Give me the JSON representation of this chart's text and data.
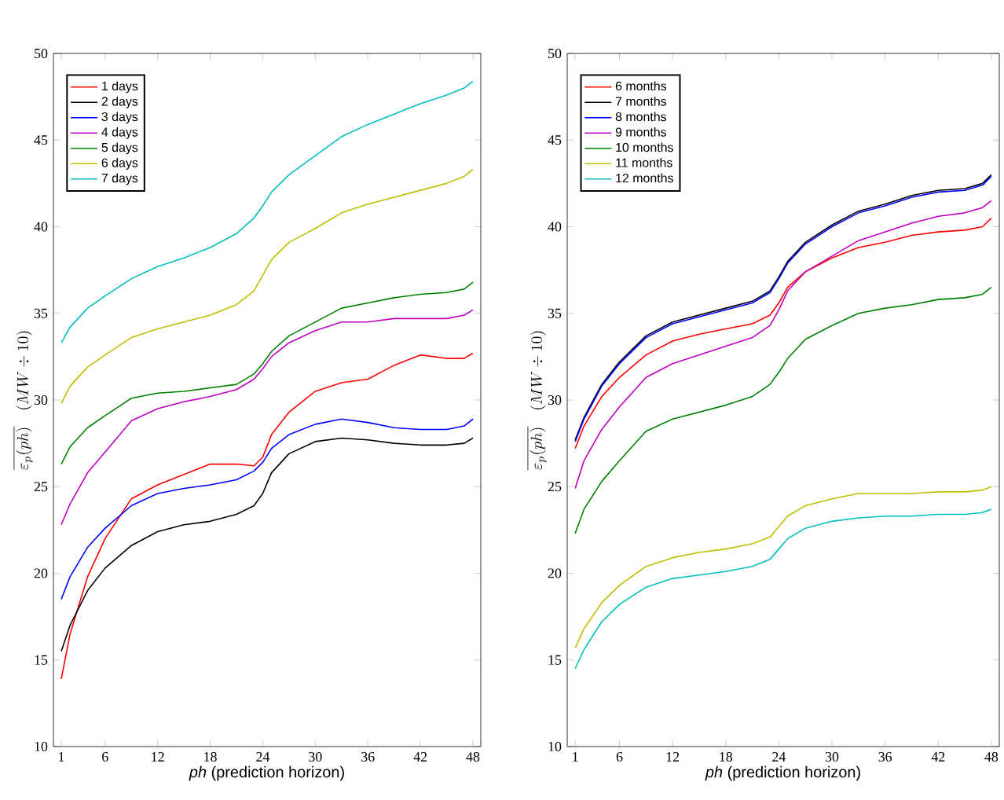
{
  "chart_data": [
    {
      "type": "line",
      "xlabel": "*ph* (prediction horizon)",
      "ylabel": "\\overline{\\varepsilon_p(ph)}\\quad (MW \\div 10)",
      "x": [
        1,
        2,
        4,
        6,
        9,
        12,
        15,
        18,
        21,
        23,
        24,
        25,
        27,
        30,
        33,
        36,
        39,
        42,
        45,
        47,
        48
      ],
      "xlim": [
        0.1,
        48.9
      ],
      "xticks": [
        1,
        6,
        12,
        18,
        24,
        30,
        36,
        42,
        48
      ],
      "ylim": [
        10,
        50
      ],
      "yticks": [
        10,
        15,
        20,
        25,
        30,
        35,
        40,
        45,
        50
      ],
      "legend": "top left",
      "grid": false,
      "marker": "none",
      "line_style": "solid",
      "series": [
        {
          "name": "1 days",
          "color": "#ff0000",
          "values": [
            13.9,
            16.5,
            19.8,
            22.0,
            24.3,
            25.1,
            25.7,
            26.3,
            26.3,
            26.2,
            26.7,
            28.0,
            29.3,
            30.5,
            31.0,
            31.2,
            32.0,
            32.6,
            32.4,
            32.4,
            32.7
          ]
        },
        {
          "name": "2 days",
          "color": "#000000",
          "values": [
            15.5,
            17.0,
            19.0,
            20.3,
            21.6,
            22.4,
            22.8,
            23.0,
            23.4,
            23.9,
            24.6,
            25.8,
            26.9,
            27.6,
            27.8,
            27.7,
            27.5,
            27.4,
            27.4,
            27.5,
            27.8
          ]
        },
        {
          "name": "3 days",
          "color": "#0000ff",
          "values": [
            18.5,
            19.8,
            21.5,
            22.6,
            23.9,
            24.6,
            24.9,
            25.1,
            25.4,
            25.9,
            26.4,
            27.2,
            28.0,
            28.6,
            28.9,
            28.7,
            28.4,
            28.3,
            28.3,
            28.5,
            28.9
          ]
        },
        {
          "name": "4 days",
          "color": "#bf00bf",
          "values": [
            22.8,
            24.0,
            25.8,
            27.0,
            28.8,
            29.5,
            29.9,
            30.2,
            30.6,
            31.2,
            31.8,
            32.5,
            33.3,
            34.0,
            34.5,
            34.5,
            34.7,
            34.7,
            34.7,
            34.9,
            35.2
          ]
        },
        {
          "name": "5 days",
          "color": "#008000",
          "values": [
            26.3,
            27.3,
            28.4,
            29.1,
            30.1,
            30.4,
            30.5,
            30.7,
            30.9,
            31.5,
            32.1,
            32.8,
            33.7,
            34.5,
            35.3,
            35.6,
            35.9,
            36.1,
            36.2,
            36.4,
            36.8
          ]
        },
        {
          "name": "6 days",
          "color": "#bfbf00",
          "values": [
            29.8,
            30.8,
            31.9,
            32.6,
            33.6,
            34.1,
            34.5,
            34.9,
            35.5,
            36.3,
            37.2,
            38.1,
            39.1,
            39.9,
            40.8,
            41.3,
            41.7,
            42.1,
            42.5,
            42.9,
            43.3
          ]
        },
        {
          "name": "7 days",
          "color": "#00bfbf",
          "values": [
            33.3,
            34.2,
            35.3,
            36.0,
            37.0,
            37.7,
            38.2,
            38.8,
            39.6,
            40.5,
            41.2,
            42.0,
            43.0,
            44.1,
            45.2,
            45.9,
            46.5,
            47.1,
            47.6,
            48.0,
            48.4
          ]
        }
      ]
    },
    {
      "type": "line",
      "xlabel": "*ph* (prediction horizon)",
      "ylabel": "\\overline{\\varepsilon_p(ph)}\\quad (MW \\div 10)",
      "x": [
        1,
        2,
        4,
        6,
        9,
        12,
        15,
        18,
        21,
        23,
        24,
        25,
        27,
        30,
        33,
        36,
        39,
        42,
        45,
        47,
        48
      ],
      "xlim": [
        0.1,
        48.9
      ],
      "xticks": [
        1,
        6,
        12,
        18,
        24,
        30,
        36,
        42,
        48
      ],
      "ylim": [
        10,
        50
      ],
      "yticks": [
        10,
        15,
        20,
        25,
        30,
        35,
        40,
        45,
        50
      ],
      "legend": "top left",
      "grid": false,
      "marker": "none",
      "line_style": "solid",
      "series": [
        {
          "name": "6 months",
          "color": "#ff0000",
          "values": [
            27.2,
            28.5,
            30.2,
            31.3,
            32.6,
            33.4,
            33.8,
            34.1,
            34.4,
            34.9,
            35.6,
            36.5,
            37.4,
            38.2,
            38.8,
            39.1,
            39.5,
            39.7,
            39.8,
            40.0,
            40.5
          ]
        },
        {
          "name": "7 months",
          "color": "#000000",
          "values": [
            27.7,
            29.0,
            30.9,
            32.2,
            33.7,
            34.5,
            34.9,
            35.3,
            35.7,
            36.3,
            37.1,
            38.0,
            39.1,
            40.1,
            40.9,
            41.3,
            41.8,
            42.1,
            42.2,
            42.5,
            43.0
          ]
        },
        {
          "name": "8 months",
          "color": "#0000ff",
          "values": [
            27.6,
            28.9,
            30.8,
            32.1,
            33.6,
            34.4,
            34.8,
            35.2,
            35.6,
            36.2,
            37.0,
            37.9,
            39.0,
            40.0,
            40.8,
            41.2,
            41.7,
            42.0,
            42.1,
            42.4,
            42.9
          ]
        },
        {
          "name": "9 months",
          "color": "#bf00bf",
          "values": [
            24.9,
            26.5,
            28.3,
            29.6,
            31.3,
            32.1,
            32.6,
            33.1,
            33.6,
            34.3,
            35.2,
            36.3,
            37.4,
            38.3,
            39.2,
            39.7,
            40.2,
            40.6,
            40.8,
            41.1,
            41.5
          ]
        },
        {
          "name": "10 months",
          "color": "#008000",
          "values": [
            22.3,
            23.7,
            25.3,
            26.5,
            28.2,
            28.9,
            29.3,
            29.7,
            30.2,
            30.9,
            31.6,
            32.4,
            33.5,
            34.3,
            35.0,
            35.3,
            35.5,
            35.8,
            35.9,
            36.1,
            36.5
          ]
        },
        {
          "name": "11 months",
          "color": "#bfbf00",
          "values": [
            15.7,
            16.8,
            18.3,
            19.3,
            20.4,
            20.9,
            21.2,
            21.4,
            21.7,
            22.1,
            22.7,
            23.3,
            23.9,
            24.3,
            24.6,
            24.6,
            24.6,
            24.7,
            24.7,
            24.8,
            25.0
          ]
        },
        {
          "name": "12 months",
          "color": "#00bfbf",
          "values": [
            14.5,
            15.6,
            17.2,
            18.2,
            19.2,
            19.7,
            19.9,
            20.1,
            20.4,
            20.8,
            21.4,
            22.0,
            22.6,
            23.0,
            23.2,
            23.3,
            23.3,
            23.4,
            23.4,
            23.5,
            23.7
          ]
        }
      ]
    }
  ]
}
